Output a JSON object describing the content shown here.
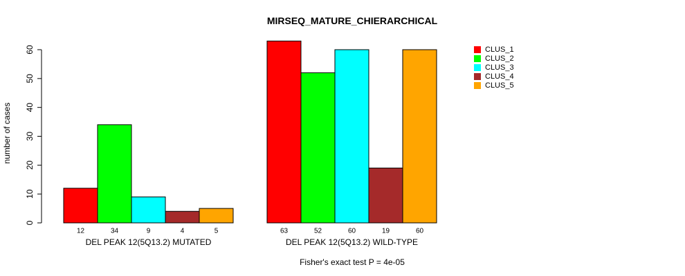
{
  "chart_data": {
    "type": "bar",
    "title": "MIRSEQ_MATURE_CHIERARCHICAL",
    "ylabel": "number of cases",
    "ylim": [
      0,
      60
    ],
    "yticks": [
      0,
      10,
      20,
      30,
      40,
      50,
      60
    ],
    "footnote": "Fisher's exact test P = 4e-05",
    "legend_position": "top-right",
    "series": [
      {
        "name": "CLUS_1",
        "color": "#ff0000"
      },
      {
        "name": "CLUS_2",
        "color": "#00ff00"
      },
      {
        "name": "CLUS_3",
        "color": "#00ffff"
      },
      {
        "name": "CLUS_4",
        "color": "#a52a2a"
      },
      {
        "name": "CLUS_5",
        "color": "#ffa500"
      }
    ],
    "groups": [
      {
        "label": "DEL PEAK 12(5Q13.2) MUTATED",
        "values": [
          12,
          34,
          9,
          4,
          5
        ]
      },
      {
        "label": "DEL PEAK 12(5Q13.2) WILD-TYPE",
        "values": [
          63,
          52,
          60,
          19,
          60
        ]
      }
    ]
  }
}
